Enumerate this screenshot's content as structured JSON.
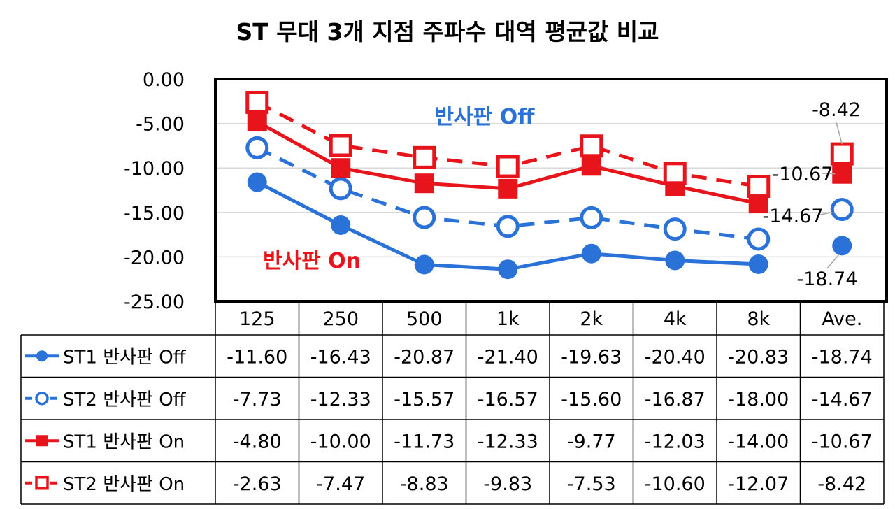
{
  "chart_data": {
    "type": "line",
    "title": "ST 무대 3개 지점 주파수 대역 평균값 비교",
    "categories": [
      "125",
      "250",
      "500",
      "1k",
      "2k",
      "4k",
      "8k",
      "Ave."
    ],
    "ylim": [
      -25,
      0
    ],
    "y_ticks": [
      "0.00",
      "-5.00",
      "-10.00",
      "-15.00",
      "-20.00",
      "-25.00"
    ],
    "grid": true,
    "legend": "data table below plot",
    "series": [
      {
        "name": "ST1 반사판 Off",
        "values": [
          -11.6,
          -16.43,
          -20.87,
          -21.4,
          -19.63,
          -20.4,
          -20.83,
          -18.74
        ],
        "labels": [
          "-11.60",
          "-16.43",
          "-20.87",
          "-21.40",
          "-19.63",
          "-20.40",
          "-20.83",
          "-18.74"
        ],
        "color": "#2a72d8",
        "marker": "filled-circle",
        "dashed": false
      },
      {
        "name": "ST2 반사판 Off",
        "values": [
          -7.73,
          -12.33,
          -15.57,
          -16.57,
          -15.6,
          -16.87,
          -18.0,
          -14.67
        ],
        "labels": [
          "-7.73",
          "-12.33",
          "-15.57",
          "-16.57",
          "-15.60",
          "-16.87",
          "-18.00",
          "-14.67"
        ],
        "color": "#2a72d8",
        "marker": "open-circle",
        "dashed": true
      },
      {
        "name": "ST1 반사판 On",
        "values": [
          -4.8,
          -10.0,
          -11.73,
          -12.33,
          -9.77,
          -12.03,
          -14.0,
          -10.67
        ],
        "labels": [
          "-4.80",
          "-10.00",
          "-11.73",
          "-12.33",
          "-9.77",
          "-12.03",
          "-14.00",
          "-10.67"
        ],
        "color": "#e8141c",
        "marker": "filled-square",
        "dashed": false
      },
      {
        "name": "ST2 반사판 On",
        "values": [
          -2.63,
          -7.47,
          -8.83,
          -9.83,
          -7.53,
          -10.6,
          -12.07,
          -8.42
        ],
        "labels": [
          "-2.63",
          "-7.47",
          "-8.83",
          "-9.83",
          "-7.53",
          "-10.60",
          "-12.07",
          "-8.42"
        ],
        "color": "#e8141c",
        "marker": "open-square",
        "dashed": true
      }
    ],
    "annotations": [
      {
        "text": "반사판 Off",
        "color": "#2a72d8"
      },
      {
        "text": "반사판 On",
        "color": "#e8141c"
      }
    ],
    "callouts": [
      "-8.42",
      "-10.67",
      "-14.67",
      "-18.74"
    ]
  }
}
